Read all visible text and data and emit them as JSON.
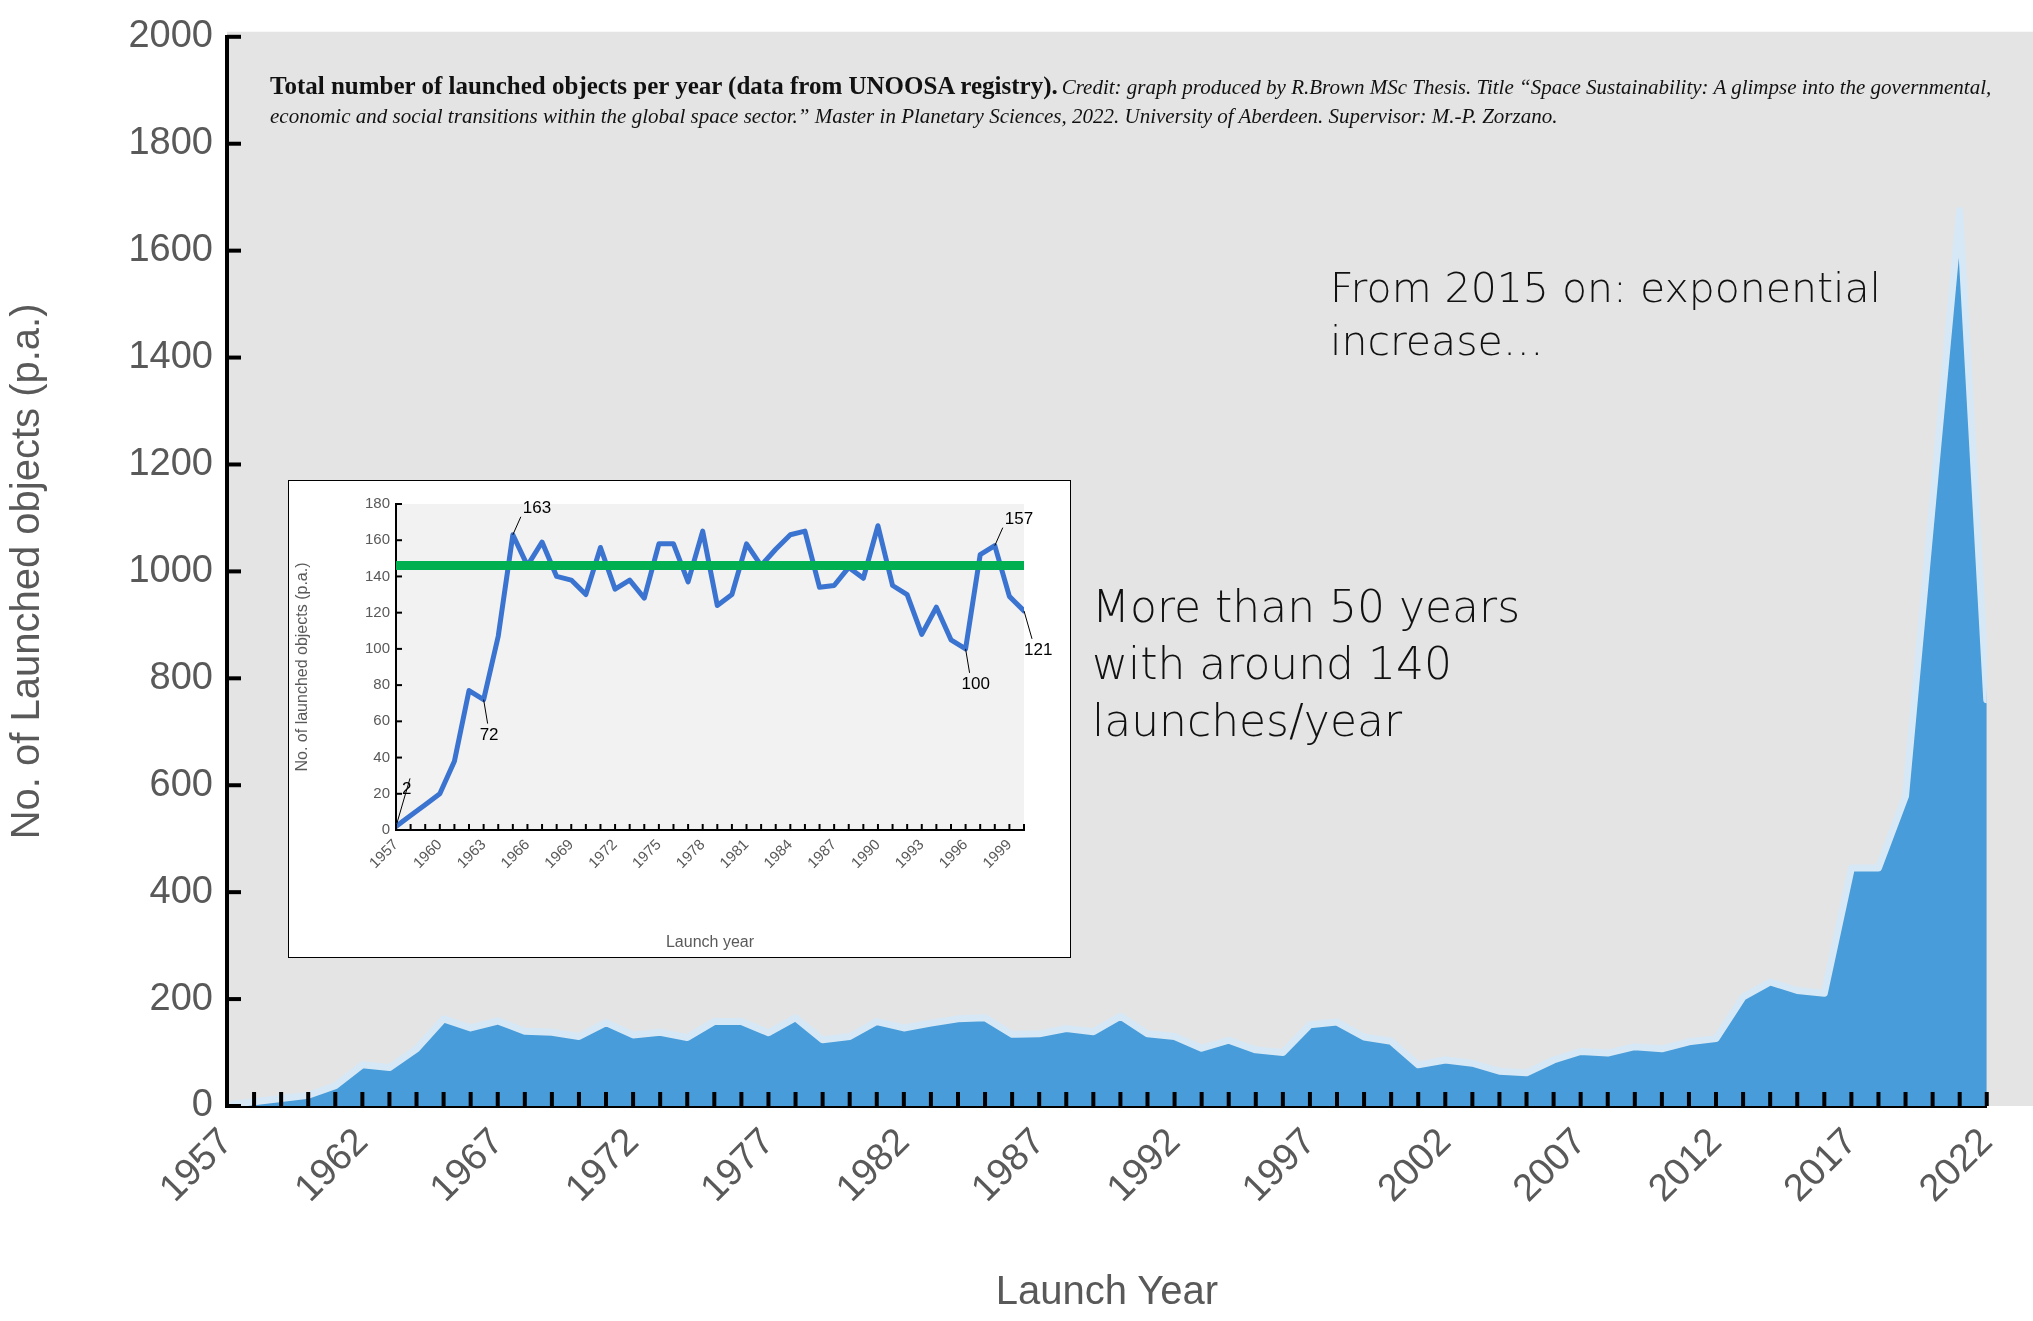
{
  "chart_data": [
    {
      "type": "area",
      "title": "Total number of launched objects per year (data from UNOOSA registry).",
      "xlabel": "Launch Year",
      "ylabel": "No. of Launched objects (p.a.)",
      "annotations": [
        "Credit: graph produced by R.Brown MSc Thesis. Title “Space Sustainability: A glimpse into the governmental, economic and social transitions within the global space sector.” Master in Planetary Sciences, 2022. University of Aberdeen. Supervisor: M.-P. Zorzano.",
        "From 2015 on: exponential increase…",
        "More than 50 years with around 140 launches/year"
      ],
      "x": [
        1957,
        1958,
        1959,
        1960,
        1961,
        1962,
        1963,
        1964,
        1965,
        1966,
        1967,
        1968,
        1969,
        1970,
        1971,
        1972,
        1973,
        1974,
        1975,
        1976,
        1977,
        1978,
        1979,
        1980,
        1981,
        1982,
        1983,
        1984,
        1985,
        1986,
        1987,
        1988,
        1989,
        1990,
        1991,
        1992,
        1993,
        1994,
        1995,
        1996,
        1997,
        1998,
        1999,
        2000,
        2001,
        2002,
        2003,
        2004,
        2005,
        2006,
        2007,
        2008,
        2009,
        2010,
        2011,
        2012,
        2013,
        2014,
        2015,
        2016,
        2017,
        2018,
        2019,
        2020,
        2021,
        2022
      ],
      "values": [
        2,
        8,
        14,
        20,
        38,
        77,
        72,
        107,
        163,
        146,
        159,
        140,
        138,
        130,
        156,
        133,
        138,
        128,
        158,
        158,
        137,
        165,
        124,
        130,
        158,
        146,
        155,
        163,
        165,
        134,
        135,
        145,
        139,
        168,
        135,
        130,
        108,
        123,
        105,
        100,
        152,
        157,
        129,
        121,
        77,
        86,
        80,
        65,
        62,
        86,
        102,
        99,
        111,
        107,
        120,
        126,
        204,
        232,
        216,
        211,
        445,
        445,
        580,
        1130,
        1675,
        760
      ],
      "color": "#479cd9",
      "xlim": [
        1957,
        2022
      ],
      "ylim": [
        0,
        2000
      ],
      "yticks": [
        0,
        200,
        400,
        600,
        800,
        1000,
        1200,
        1400,
        1600,
        1800,
        2000
      ],
      "xticks": [
        1957,
        {
          "value": 1958,
          "label": null
        },
        {
          "value": 1959,
          "label": null
        },
        {
          "value": 1960,
          "label": null
        },
        {
          "value": 1961,
          "label": null
        },
        1962,
        {
          "value": 1963,
          "label": null
        },
        {
          "value": 1964,
          "label": null
        },
        {
          "value": 1965,
          "label": null
        },
        {
          "value": 1966,
          "label": null
        },
        1967,
        {
          "value": 1968,
          "label": null
        },
        {
          "value": 1969,
          "label": null
        },
        {
          "value": 1970,
          "label": null
        },
        {
          "value": 1971,
          "label": null
        },
        1972,
        {
          "value": 1973,
          "label": null
        },
        {
          "value": 1974,
          "label": null
        },
        {
          "value": 1975,
          "label": null
        },
        {
          "value": 1976,
          "label": null
        },
        1977,
        {
          "value": 1978,
          "label": null
        },
        {
          "value": 1979,
          "label": null
        },
        {
          "value": 1980,
          "label": null
        },
        {
          "value": 1981,
          "label": null
        },
        1982,
        {
          "value": 1983,
          "label": null
        },
        {
          "value": 1984,
          "label": null
        },
        {
          "value": 1985,
          "label": null
        },
        {
          "value": 1986,
          "label": null
        },
        1987,
        {
          "value": 1988,
          "label": null
        },
        {
          "value": 1989,
          "label": null
        },
        {
          "value": 1990,
          "label": null
        },
        {
          "value": 1991,
          "label": null
        },
        1992,
        {
          "value": 1993,
          "label": null
        },
        {
          "value": 1994,
          "label": null
        },
        {
          "value": 1995,
          "label": null
        },
        {
          "value": 1996,
          "label": null
        },
        1997,
        {
          "value": 1998,
          "label": null
        },
        {
          "value": 1999,
          "label": null
        },
        {
          "value": 2000,
          "label": null
        },
        {
          "value": 2001,
          "label": null
        },
        2002,
        {
          "value": 2003,
          "label": null
        },
        {
          "value": 2004,
          "label": null
        },
        {
          "value": 2005,
          "label": null
        },
        {
          "value": 2006,
          "label": null
        },
        2007,
        {
          "value": 2008,
          "label": null
        },
        {
          "value": 2009,
          "label": null
        },
        {
          "value": 2010,
          "label": null
        },
        {
          "value": 2011,
          "label": null
        },
        2012,
        {
          "value": 2013,
          "label": null
        },
        {
          "value": 2014,
          "label": null
        },
        {
          "value": 2015,
          "label": null
        },
        {
          "value": 2016,
          "label": null
        },
        2017,
        {
          "value": 2018,
          "label": null
        },
        {
          "value": 2019,
          "label": null
        },
        {
          "value": 2020,
          "label": null
        },
        {
          "value": 2021,
          "label": null
        },
        2022
      ]
    },
    {
      "type": "line",
      "xlabel": "Launch year",
      "ylabel": "No. of launched objects (p.a.)",
      "x": [
        1957,
        1958,
        1959,
        1960,
        1961,
        1962,
        1963,
        1964,
        1965,
        1966,
        1967,
        1968,
        1969,
        1970,
        1971,
        1972,
        1973,
        1974,
        1975,
        1976,
        1977,
        1978,
        1979,
        1980,
        1981,
        1982,
        1983,
        1984,
        1985,
        1986,
        1987,
        1988,
        1989,
        1990,
        1991,
        1992,
        1993,
        1994,
        1995,
        1996,
        1997,
        1998,
        1999,
        2000
      ],
      "values": [
        2,
        8,
        14,
        20,
        38,
        77,
        72,
        107,
        163,
        146,
        159,
        140,
        138,
        130,
        156,
        133,
        138,
        128,
        158,
        158,
        137,
        165,
        124,
        130,
        158,
        146,
        155,
        163,
        165,
        134,
        135,
        145,
        139,
        168,
        135,
        130,
        108,
        123,
        105,
        100,
        152,
        157,
        129,
        121
      ],
      "value_labels": [
        "2",
        null,
        null,
        null,
        null,
        null,
        "72",
        null,
        "163",
        null,
        null,
        null,
        null,
        null,
        null,
        null,
        null,
        null,
        null,
        null,
        null,
        null,
        null,
        null,
        null,
        null,
        null,
        null,
        null,
        null,
        null,
        null,
        null,
        null,
        null,
        null,
        null,
        null,
        null,
        "100",
        null,
        "157",
        null,
        "121"
      ],
      "color": "#3a74d0",
      "xlim": [
        1957,
        2000
      ],
      "ylim": [
        0,
        180
      ],
      "yticks": [
        0,
        20,
        40,
        60,
        80,
        100,
        120,
        140,
        160,
        180
      ],
      "xticks": [
        1957,
        {
          "value": 1958,
          "label": null
        },
        {
          "value": 1959,
          "label": null
        },
        1960,
        {
          "value": 1961,
          "label": null
        },
        {
          "value": 1962,
          "label": null
        },
        1963,
        {
          "value": 1964,
          "label": null
        },
        {
          "value": 1965,
          "label": null
        },
        1966,
        {
          "value": 1967,
          "label": null
        },
        {
          "value": 1968,
          "label": null
        },
        1969,
        {
          "value": 1970,
          "label": null
        },
        {
          "value": 1971,
          "label": null
        },
        1972,
        {
          "value": 1973,
          "label": null
        },
        {
          "value": 1974,
          "label": null
        },
        1975,
        {
          "value": 1976,
          "label": null
        },
        {
          "value": 1977,
          "label": null
        },
        1978,
        {
          "value": 1979,
          "label": null
        },
        {
          "value": 1980,
          "label": null
        },
        1981,
        {
          "value": 1982,
          "label": null
        },
        {
          "value": 1983,
          "label": null
        },
        1984,
        {
          "value": 1985,
          "label": null
        },
        {
          "value": 1986,
          "label": null
        },
        1987,
        {
          "value": 1988,
          "label": null
        },
        {
          "value": 1989,
          "label": null
        },
        1990,
        {
          "value": 1991,
          "label": null
        },
        {
          "value": 1992,
          "label": null
        },
        1993,
        {
          "value": 1994,
          "label": null
        },
        {
          "value": 1995,
          "label": null
        },
        1996,
        {
          "value": 1997,
          "label": null
        },
        {
          "value": 1998,
          "label": null
        },
        1999,
        {
          "value": 2000,
          "label": null
        }
      ],
      "ref_lines": [
        {
          "axis": "y",
          "value": 146,
          "color": "#00b050"
        }
      ]
    }
  ]
}
